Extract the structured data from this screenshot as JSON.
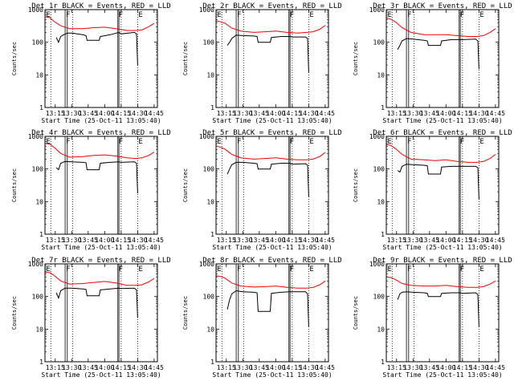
{
  "figure": {
    "colors": {
      "events": "#000000",
      "lld": "#ff0000",
      "axes": "#000000",
      "background": "#ffffff"
    },
    "shared": {
      "xlabel": "Start Time (25-Oct-11 13:05:40)",
      "ylabel": "Counts/sec",
      "ylim": [
        1,
        1000
      ],
      "yscale": "log",
      "yticks": [
        1,
        10,
        100,
        1000
      ],
      "ytick_labels": [
        "1",
        "10",
        "100",
        "1000"
      ],
      "marker_labels": [
        "E",
        "F",
        "F",
        "E"
      ]
    }
  },
  "chart_data": [
    {
      "type": "line",
      "title": "Det 1r BLACK = Events, RED = LLD",
      "xlim": [
        "13:05:40",
        "14:48:00"
      ],
      "grid": false,
      "xticks": [
        "13:15",
        "13:30",
        "13:45",
        "14:00",
        "14:15",
        "14:30",
        "14:45"
      ],
      "vlines_dotted": [
        "13:11",
        "13:31",
        "14:15",
        "14:30"
      ],
      "vlines_solid": [
        "13:24",
        "13:26",
        "14:12",
        "14:13"
      ],
      "series": [
        {
          "name": "Events",
          "color": "#000000",
          "x": [
            "13:16",
            "13:18",
            "13:20",
            "13:22",
            "13:26",
            "13:30",
            "13:40",
            "13:43",
            "13:44",
            "13:55",
            "13:56",
            "14:05",
            "14:13",
            "14:15",
            "14:27",
            "14:29",
            "14:30"
          ],
          "values": [
            140,
            100,
            150,
            165,
            190,
            190,
            170,
            160,
            115,
            115,
            150,
            170,
            200,
            180,
            200,
            180,
            20
          ]
        },
        {
          "name": "LLD",
          "color": "#ff0000",
          "x": [
            "13:06",
            "13:10",
            "13:14",
            "13:20",
            "13:28",
            "13:40",
            "13:50",
            "14:00",
            "14:10",
            "14:20",
            "14:28",
            "14:34",
            "14:40",
            "14:45"
          ],
          "values": [
            600,
            570,
            430,
            320,
            260,
            260,
            280,
            290,
            260,
            230,
            230,
            240,
            300,
            380
          ]
        }
      ]
    },
    {
      "type": "line",
      "title": "Det 2r BLACK = Events, RED = LLD",
      "xlim": [
        "13:05:40",
        "14:48:00"
      ],
      "grid": false,
      "xticks": [
        "13:15",
        "13:30",
        "13:45",
        "14:00",
        "14:15",
        "14:30",
        "14:45"
      ],
      "vlines_dotted": [
        "13:11",
        "13:31",
        "14:15",
        "14:30"
      ],
      "vlines_solid": [
        "13:24",
        "13:26",
        "14:12",
        "14:13"
      ],
      "series": [
        {
          "name": "Events",
          "color": "#000000",
          "x": [
            "13:16",
            "13:18",
            "13:20",
            "13:24",
            "13:30",
            "13:40",
            "13:43",
            "13:44",
            "13:55",
            "13:56",
            "14:05",
            "14:13",
            "14:15",
            "14:27",
            "14:29",
            "14:30"
          ],
          "values": [
            80,
            100,
            130,
            165,
            160,
            155,
            150,
            100,
            100,
            140,
            150,
            150,
            145,
            145,
            130,
            12
          ]
        },
        {
          "name": "LLD",
          "color": "#ff0000",
          "x": [
            "13:06",
            "13:10",
            "13:14",
            "13:20",
            "13:28",
            "13:40",
            "13:50",
            "14:00",
            "14:10",
            "14:20",
            "14:28",
            "14:34",
            "14:40",
            "14:45"
          ],
          "values": [
            450,
            420,
            380,
            270,
            220,
            200,
            210,
            220,
            200,
            190,
            200,
            210,
            250,
            330
          ]
        }
      ]
    },
    {
      "type": "line",
      "title": "Det 3r BLACK = Events, RED = LLD",
      "xlim": [
        "13:05:40",
        "14:48:00"
      ],
      "grid": false,
      "xticks": [
        "13:15",
        "13:30",
        "13:45",
        "14:00",
        "14:15",
        "14:30",
        "14:45"
      ],
      "vlines_dotted": [
        "13:11",
        "13:31",
        "14:15",
        "14:30"
      ],
      "vlines_solid": [
        "13:24",
        "13:26",
        "14:12",
        "14:13"
      ],
      "series": [
        {
          "name": "Events",
          "color": "#000000",
          "x": [
            "13:16",
            "13:18",
            "13:20",
            "13:24",
            "13:30",
            "13:40",
            "13:43",
            "13:44",
            "13:55",
            "13:56",
            "14:05",
            "14:13",
            "14:15",
            "14:27",
            "14:29",
            "14:30"
          ],
          "values": [
            60,
            80,
            110,
            130,
            125,
            115,
            110,
            80,
            80,
            110,
            120,
            120,
            120,
            125,
            110,
            15
          ]
        },
        {
          "name": "LLD",
          "color": "#ff0000",
          "x": [
            "13:06",
            "13:10",
            "13:14",
            "13:20",
            "13:28",
            "13:40",
            "13:50",
            "14:00",
            "14:10",
            "14:20",
            "14:28",
            "14:34",
            "14:40",
            "14:45"
          ],
          "values": [
            550,
            500,
            420,
            280,
            200,
            170,
            170,
            170,
            160,
            150,
            150,
            160,
            200,
            260
          ]
        }
      ]
    },
    {
      "type": "line",
      "title": "Det 4r BLACK = Events, RED = LLD",
      "xlim": [
        "13:05:40",
        "14:48:00"
      ],
      "grid": false,
      "xticks": [
        "13:15",
        "13:30",
        "13:45",
        "14:00",
        "14:15",
        "14:30",
        "14:45"
      ],
      "vlines_dotted": [
        "13:11",
        "13:31",
        "14:15",
        "14:30"
      ],
      "vlines_solid": [
        "13:24",
        "13:26",
        "14:12",
        "14:13"
      ],
      "series": [
        {
          "name": "Events",
          "color": "#000000",
          "x": [
            "13:16",
            "13:18",
            "13:20",
            "13:24",
            "13:30",
            "13:40",
            "13:43",
            "13:44",
            "13:55",
            "13:56",
            "14:05",
            "14:13",
            "14:15",
            "14:27",
            "14:29",
            "14:30"
          ],
          "values": [
            110,
            95,
            150,
            170,
            165,
            160,
            155,
            95,
            95,
            150,
            160,
            165,
            160,
            165,
            150,
            18
          ]
        },
        {
          "name": "LLD",
          "color": "#ff0000",
          "x": [
            "13:06",
            "13:10",
            "13:14",
            "13:20",
            "13:28",
            "13:40",
            "13:50",
            "14:00",
            "14:10",
            "14:20",
            "14:28",
            "14:34",
            "14:40",
            "14:45"
          ],
          "values": [
            600,
            580,
            460,
            300,
            230,
            240,
            260,
            270,
            250,
            220,
            210,
            220,
            260,
            330
          ]
        }
      ]
    },
    {
      "type": "line",
      "title": "Det 5r BLACK = Events, RED = LLD",
      "xlim": [
        "13:05:40",
        "14:48:00"
      ],
      "grid": false,
      "xticks": [
        "13:15",
        "13:30",
        "13:45",
        "14:00",
        "14:15",
        "14:30",
        "14:45"
      ],
      "vlines_dotted": [
        "13:11",
        "13:31",
        "14:15",
        "14:30"
      ],
      "vlines_solid": [
        "13:24",
        "13:26",
        "14:12",
        "14:13"
      ],
      "series": [
        {
          "name": "Events",
          "color": "#000000",
          "x": [
            "13:16",
            "13:18",
            "13:20",
            "13:24",
            "13:30",
            "13:40",
            "13:43",
            "13:44",
            "13:55",
            "13:56",
            "14:05",
            "14:13",
            "14:15",
            "14:27",
            "14:29",
            "14:30"
          ],
          "values": [
            70,
            100,
            135,
            160,
            160,
            150,
            145,
            100,
            100,
            140,
            150,
            150,
            140,
            145,
            130,
            14
          ]
        },
        {
          "name": "LLD",
          "color": "#ff0000",
          "x": [
            "13:06",
            "13:10",
            "13:14",
            "13:20",
            "13:28",
            "13:40",
            "13:50",
            "14:00",
            "14:10",
            "14:20",
            "14:28",
            "14:34",
            "14:40",
            "14:45"
          ],
          "values": [
            500,
            460,
            400,
            280,
            220,
            200,
            210,
            220,
            200,
            190,
            190,
            200,
            240,
            320
          ]
        }
      ]
    },
    {
      "type": "line",
      "title": "Det 6r BLACK = Events, RED = LLD",
      "xlim": [
        "13:05:40",
        "14:48:00"
      ],
      "grid": false,
      "xticks": [
        "13:15",
        "13:30",
        "13:45",
        "14:00",
        "14:15",
        "14:30",
        "14:45"
      ],
      "vlines_dotted": [
        "13:11",
        "13:31",
        "14:15",
        "14:30"
      ],
      "vlines_solid": [
        "13:24",
        "13:26",
        "14:12",
        "14:13"
      ],
      "series": [
        {
          "name": "Events",
          "color": "#000000",
          "x": [
            "13:16",
            "13:18",
            "13:20",
            "13:24",
            "13:30",
            "13:40",
            "13:43",
            "13:44",
            "13:55",
            "13:56",
            "14:05",
            "14:13",
            "14:15",
            "14:27",
            "14:29",
            "14:30"
          ],
          "values": [
            90,
            80,
            120,
            140,
            135,
            130,
            125,
            70,
            70,
            115,
            120,
            120,
            120,
            120,
            110,
            12
          ]
        },
        {
          "name": "LLD",
          "color": "#ff0000",
          "x": [
            "13:06",
            "13:10",
            "13:14",
            "13:20",
            "13:28",
            "13:40",
            "13:50",
            "14:00",
            "14:10",
            "14:20",
            "14:28",
            "14:34",
            "14:40",
            "14:45"
          ],
          "values": [
            560,
            520,
            420,
            280,
            200,
            190,
            180,
            190,
            170,
            160,
            160,
            170,
            210,
            280
          ]
        }
      ]
    },
    {
      "type": "line",
      "title": "Det 7r BLACK = Events, RED = LLD",
      "xlim": [
        "13:05:40",
        "14:48:00"
      ],
      "grid": false,
      "xticks": [
        "13:15",
        "13:30",
        "13:45",
        "14:00",
        "14:15",
        "14:30",
        "14:45"
      ],
      "vlines_dotted": [
        "13:11",
        "13:31",
        "14:15",
        "14:30"
      ],
      "vlines_solid": [
        "13:24",
        "13:26",
        "14:12",
        "14:13"
      ],
      "series": [
        {
          "name": "Events",
          "color": "#000000",
          "x": [
            "13:16",
            "13:18",
            "13:20",
            "13:24",
            "13:30",
            "13:40",
            "13:43",
            "13:44",
            "13:55",
            "13:56",
            "14:05",
            "14:13",
            "14:15",
            "14:27",
            "14:29",
            "14:30"
          ],
          "values": [
            130,
            90,
            150,
            180,
            180,
            170,
            165,
            105,
            105,
            160,
            170,
            180,
            175,
            180,
            160,
            22
          ]
        },
        {
          "name": "LLD",
          "color": "#ff0000",
          "x": [
            "13:06",
            "13:10",
            "13:14",
            "13:20",
            "13:28",
            "13:40",
            "13:50",
            "14:00",
            "14:10",
            "14:20",
            "14:28",
            "14:34",
            "14:40",
            "14:45"
          ],
          "values": [
            560,
            540,
            440,
            300,
            240,
            250,
            270,
            290,
            260,
            220,
            220,
            230,
            280,
            360
          ]
        }
      ]
    },
    {
      "type": "line",
      "title": "Det 8r BLACK = Events, RED = LLD",
      "xlim": [
        "13:05:40",
        "14:48:00"
      ],
      "grid": false,
      "xticks": [
        "13:15",
        "13:30",
        "13:45",
        "14:00",
        "14:15",
        "14:30",
        "14:45"
      ],
      "vlines_dotted": [
        "13:11",
        "13:31",
        "14:15",
        "14:30"
      ],
      "vlines_solid": [
        "13:24",
        "13:26",
        "14:12",
        "14:13"
      ],
      "series": [
        {
          "name": "Events",
          "color": "#000000",
          "x": [
            "13:16",
            "13:18",
            "13:20",
            "13:24",
            "13:30",
            "13:40",
            "13:43",
            "13:44",
            "13:55",
            "13:56",
            "14:05",
            "14:13",
            "14:15",
            "14:27",
            "14:29",
            "14:30"
          ],
          "values": [
            40,
            80,
            120,
            150,
            140,
            135,
            130,
            35,
            35,
            125,
            135,
            140,
            140,
            140,
            120,
            12
          ]
        },
        {
          "name": "LLD",
          "color": "#ff0000",
          "x": [
            "13:06",
            "13:10",
            "13:14",
            "13:20",
            "13:28",
            "13:40",
            "13:50",
            "14:00",
            "14:10",
            "14:20",
            "14:28",
            "14:34",
            "14:40",
            "14:45"
          ],
          "values": [
            430,
            410,
            360,
            260,
            210,
            195,
            200,
            210,
            190,
            180,
            180,
            190,
            230,
            300
          ]
        }
      ]
    },
    {
      "type": "line",
      "title": "Det 9r BLACK = Events, RED = LLD",
      "xlim": [
        "13:05:40",
        "14:48:00"
      ],
      "grid": false,
      "xticks": [
        "13:15",
        "13:30",
        "13:45",
        "14:00",
        "14:15",
        "14:30",
        "14:45"
      ],
      "vlines_dotted": [
        "13:11",
        "13:31",
        "14:15",
        "14:30"
      ],
      "vlines_solid": [
        "13:24",
        "13:26",
        "14:12",
        "14:13"
      ],
      "series": [
        {
          "name": "Events",
          "color": "#000000",
          "x": [
            "13:16",
            "13:18",
            "13:20",
            "13:24",
            "13:30",
            "13:40",
            "13:43",
            "13:44",
            "13:55",
            "13:56",
            "14:05",
            "14:13",
            "14:15",
            "14:27",
            "14:29",
            "14:30"
          ],
          "values": [
            80,
            120,
            135,
            140,
            135,
            130,
            125,
            100,
            100,
            125,
            130,
            130,
            125,
            130,
            115,
            12
          ]
        },
        {
          "name": "LLD",
          "color": "#ff0000",
          "x": [
            "13:06",
            "13:10",
            "13:14",
            "13:20",
            "13:28",
            "13:40",
            "13:50",
            "14:00",
            "14:10",
            "14:20",
            "14:28",
            "14:34",
            "14:40",
            "14:45"
          ],
          "values": [
            400,
            380,
            330,
            250,
            220,
            210,
            210,
            220,
            200,
            190,
            190,
            200,
            240,
            300
          ]
        }
      ]
    }
  ]
}
